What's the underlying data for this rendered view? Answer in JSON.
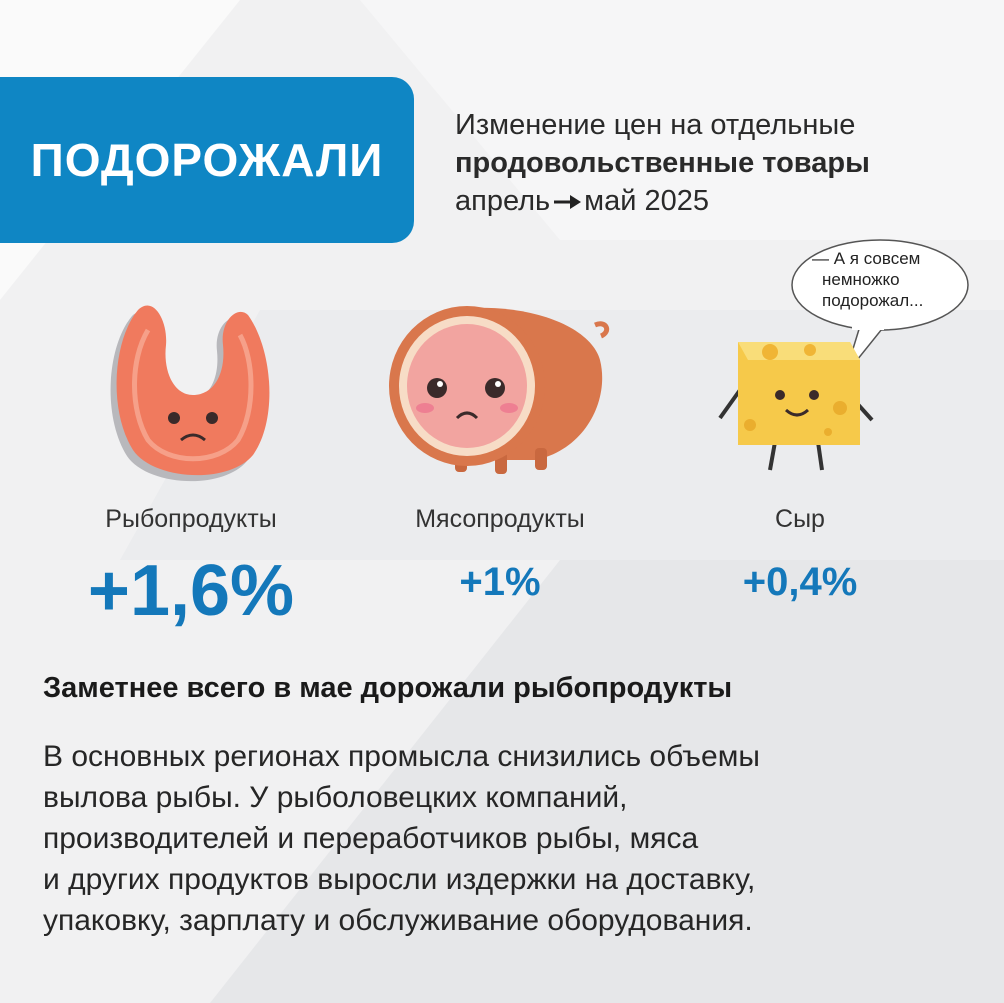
{
  "badge": {
    "label": "ПОДОРОЖАЛИ"
  },
  "subtitle": {
    "line1": "Изменение цен на отдельные",
    "line2": "продовольственные товары",
    "line3_from": "апрель",
    "line3_to": "май 2025"
  },
  "speech_bubble": {
    "lines": [
      "— А я совсем",
      "немножко",
      "подорожал..."
    ]
  },
  "items": [
    {
      "label": "Рыбопродукты",
      "value": "+1,6%",
      "icon": "fish-steak-icon"
    },
    {
      "label": "Мясопродукты",
      "value": "+1%",
      "icon": "ham-icon"
    },
    {
      "label": "Сыр",
      "value": "+0,4%",
      "icon": "cheese-icon"
    }
  ],
  "headline": "Заметнее всего в мае дорожали рыбопродукты",
  "body_lines": [
    "В основных регионах промысла снизились объемы",
    "вылова рыбы. У рыболовецких компаний,",
    "производителей и переработчиков рыбы, мяса",
    "и других продуктов выросли издержки на доставку,",
    "упаковку, зарплату и обслуживание оборудования."
  ],
  "colors": {
    "accent": "#0f86c4",
    "value": "#1478ba",
    "background": "#f1f1f2"
  }
}
